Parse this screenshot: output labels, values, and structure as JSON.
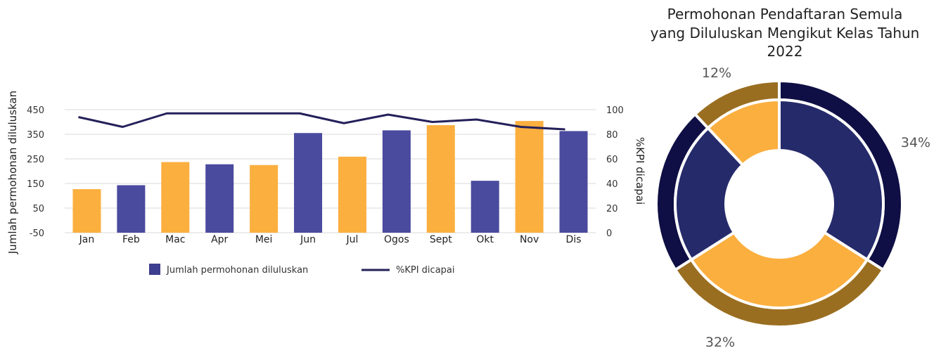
{
  "chart_data": [
    {
      "type": "bar",
      "categories": [
        "Jan",
        "Feb",
        "Mac",
        "Apr",
        "Mei",
        "Jun",
        "Jul",
        "Ogos",
        "Sept",
        "Okt",
        "Nov",
        "Dis"
      ],
      "series": [
        {
          "name": "Jumlah permohonan diluluskan",
          "kind": "bar",
          "axis": "left",
          "values": [
            127,
            143,
            237,
            228,
            225,
            355,
            259,
            366,
            387,
            161,
            404,
            363
          ],
          "colors": [
            "#FBAF3F",
            "#4A4A9E",
            "#FBAF3F",
            "#4A4A9E",
            "#FBAF3F",
            "#4A4A9E",
            "#FBAF3F",
            "#4A4A9E",
            "#FBAF3F",
            "#4A4A9E",
            "#FBAF3F",
            "#4A4A9E"
          ]
        },
        {
          "name": "%KPI dicapai",
          "kind": "line",
          "axis": "right",
          "values": [
            94,
            86,
            97,
            97,
            97,
            97,
            89,
            96,
            90,
            92,
            86,
            84
          ],
          "color": "#24205A"
        }
      ],
      "ylabel": "Jumlah permohonan diluluskan",
      "y2label": "%KPI dicapai",
      "yticks": [
        -50,
        50,
        150,
        250,
        350,
        450
      ],
      "y2ticks": [
        0,
        20,
        40,
        60,
        80,
        100
      ],
      "ylim": [
        -50,
        450
      ],
      "y2lim": [
        0,
        100
      ],
      "grid": true,
      "legend_position": "bottom"
    },
    {
      "type": "pie",
      "title": "Permohonan Pendaftaran Semula yang Diluluskan Mengikut Kelas Tahun 2022",
      "title_lines": [
        "Permohonan Pendaftaran Semula",
        "yang Diluluskan Mengikut Kelas Tahun",
        "2022"
      ],
      "donut": true,
      "slices": [
        {
          "value": 34,
          "label": "34%",
          "color": "#252A6A",
          "outer_color": "#0F0F45"
        },
        {
          "value": 32,
          "label": "32%",
          "color": "#FBAF3F",
          "outer_color": "#9A6E20"
        },
        {
          "value": 22,
          "label": "",
          "color": "#252A6A",
          "outer_color": "#0F0F45"
        },
        {
          "value": 12,
          "label": "12%",
          "color": "#FBAF3F",
          "outer_color": "#9A6E20"
        }
      ]
    }
  ]
}
